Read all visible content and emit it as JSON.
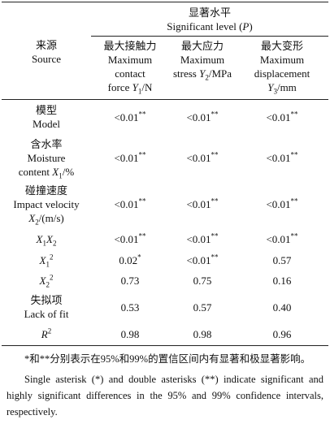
{
  "table": {
    "header": {
      "source": [
        [
          {
            "t": "来源"
          }
        ],
        [
          {
            "t": "Source"
          }
        ]
      ],
      "group": [
        [
          {
            "t": "显著水平"
          }
        ],
        [
          {
            "t": "Significant level ("
          },
          {
            "t": "P",
            "i": true
          },
          {
            "t": ")"
          }
        ]
      ],
      "columns": [
        [
          [
            {
              "t": "最大接触力"
            }
          ],
          [
            {
              "t": "Maximum"
            }
          ],
          [
            {
              "t": "contact"
            }
          ],
          [
            {
              "t": "force "
            },
            {
              "t": "Y",
              "i": true
            },
            {
              "t": "1",
              "sub": true
            },
            {
              "t": "/N"
            }
          ]
        ],
        [
          [
            {
              "t": "最大应力"
            }
          ],
          [
            {
              "t": "Maximum"
            }
          ],
          [
            {
              "t": "stress "
            },
            {
              "t": "Y",
              "i": true
            },
            {
              "t": "2",
              "sub": true
            },
            {
              "t": "/MPa"
            }
          ]
        ],
        [
          [
            {
              "t": "最大变形"
            }
          ],
          [
            {
              "t": "Maximum"
            }
          ],
          [
            {
              "t": "displacement"
            }
          ],
          [
            {
              "t": "Y",
              "i": true
            },
            {
              "t": "3",
              "sub": true
            },
            {
              "t": "/mm"
            }
          ]
        ]
      ]
    },
    "rows": [
      {
        "source": [
          [
            {
              "t": "模型"
            }
          ],
          [
            {
              "t": "Model"
            }
          ]
        ],
        "values": [
          [
            [
              {
                "t": "<0.01"
              },
              {
                "t": "**",
                "sup": true
              }
            ]
          ],
          [
            [
              {
                "t": "<0.01"
              },
              {
                "t": "**",
                "sup": true
              }
            ]
          ],
          [
            [
              {
                "t": "<0.01"
              },
              {
                "t": "**",
                "sup": true
              }
            ]
          ]
        ]
      },
      {
        "source": [
          [
            {
              "t": "含水率"
            }
          ],
          [
            {
              "t": "Moisture"
            }
          ],
          [
            {
              "t": "content "
            },
            {
              "t": "X",
              "i": true
            },
            {
              "t": "1",
              "sub": true
            },
            {
              "t": "/%"
            }
          ]
        ],
        "values": [
          [
            [
              {
                "t": "<0.01"
              },
              {
                "t": "**",
                "sup": true
              }
            ]
          ],
          [
            [
              {
                "t": "<0.01"
              },
              {
                "t": "**",
                "sup": true
              }
            ]
          ],
          [
            [
              {
                "t": "<0.01"
              },
              {
                "t": "**",
                "sup": true
              }
            ]
          ]
        ]
      },
      {
        "source": [
          [
            {
              "t": "碰撞速度"
            }
          ],
          [
            {
              "t": "Impact velocity"
            }
          ],
          [
            {
              "t": "X",
              "i": true
            },
            {
              "t": "2",
              "sub": true
            },
            {
              "t": "/(m/s)"
            }
          ]
        ],
        "values": [
          [
            [
              {
                "t": "<0.01"
              },
              {
                "t": "**",
                "sup": true
              }
            ]
          ],
          [
            [
              {
                "t": "<0.01"
              },
              {
                "t": "**",
                "sup": true
              }
            ]
          ],
          [
            [
              {
                "t": "<0.01"
              },
              {
                "t": "**",
                "sup": true
              }
            ]
          ]
        ]
      },
      {
        "source": [
          [
            {
              "t": "X",
              "i": true
            },
            {
              "t": "1",
              "sub": true
            },
            {
              "t": "X",
              "i": true
            },
            {
              "t": "2",
              "sub": true
            }
          ]
        ],
        "values": [
          [
            [
              {
                "t": "<0.01"
              },
              {
                "t": "**",
                "sup": true
              }
            ]
          ],
          [
            [
              {
                "t": "<0.01"
              },
              {
                "t": "**",
                "sup": true
              }
            ]
          ],
          [
            [
              {
                "t": "<0.01"
              },
              {
                "t": "**",
                "sup": true
              }
            ]
          ]
        ]
      },
      {
        "source": [
          [
            {
              "t": "X",
              "i": true
            },
            {
              "t": "1",
              "sub": true
            },
            {
              "t": "2",
              "sup": true
            }
          ]
        ],
        "values": [
          [
            [
              {
                "t": "0.02"
              },
              {
                "t": "*",
                "sup": true
              }
            ]
          ],
          [
            [
              {
                "t": "<0.01"
              },
              {
                "t": "**",
                "sup": true
              }
            ]
          ],
          [
            [
              {
                "t": "0.57"
              }
            ]
          ]
        ]
      },
      {
        "source": [
          [
            {
              "t": "X",
              "i": true
            },
            {
              "t": "2",
              "sub": true
            },
            {
              "t": "2",
              "sup": true
            }
          ]
        ],
        "values": [
          [
            [
              {
                "t": "0.73"
              }
            ]
          ],
          [
            [
              {
                "t": "0.75"
              }
            ]
          ],
          [
            [
              {
                "t": "0.16"
              }
            ]
          ]
        ]
      },
      {
        "source": [
          [
            {
              "t": "失拟项"
            }
          ],
          [
            {
              "t": "Lack of fit"
            }
          ]
        ],
        "values": [
          [
            [
              {
                "t": "0.53"
              }
            ]
          ],
          [
            [
              {
                "t": "0.57"
              }
            ]
          ],
          [
            [
              {
                "t": "0.40"
              }
            ]
          ]
        ]
      },
      {
        "source": [
          [
            {
              "t": "R",
              "i": true
            },
            {
              "t": "2",
              "sup": true
            }
          ]
        ],
        "values": [
          [
            [
              {
                "t": "0.98"
              }
            ]
          ],
          [
            [
              {
                "t": "0.98"
              }
            ]
          ],
          [
            [
              {
                "t": "0.96"
              }
            ]
          ]
        ]
      }
    ],
    "notes": [
      "*和**分别表示在95%和99%的置信区间内有显著和极显著影响。",
      "Single asterisk (*) and double asterisks (**) indicate significant and highly significant differences in the 95% and 99% confidence intervals, respectively."
    ]
  }
}
